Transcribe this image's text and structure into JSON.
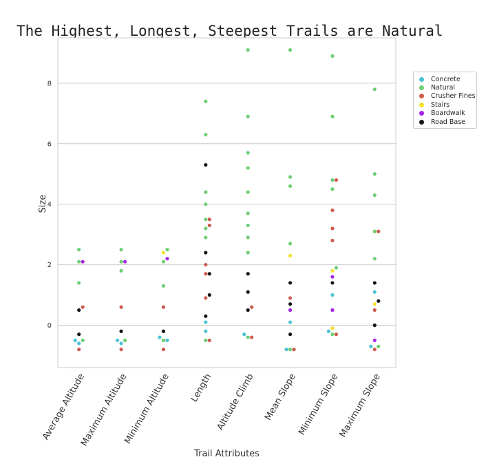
{
  "chart_data": {
    "type": "scatter",
    "subtype": "swarm",
    "title": "The Highest, Longest, Steepest Trails are Natural",
    "xlabel": "Trail Attributes",
    "ylabel": "Size",
    "categories": [
      "Average Altitude",
      "Maximum Altitude",
      "Minimum Altitude",
      "Length",
      "Altitude Climb",
      "Mean Slope",
      "Minimum Slope",
      "Maximum Slope"
    ],
    "yticks": [
      0,
      2,
      4,
      6,
      8
    ],
    "ylim": [
      -1.4,
      9.5
    ],
    "grid": true,
    "legend_position": "right",
    "legend": [
      {
        "name": "Concrete",
        "color": "#4bc3d4"
      },
      {
        "name": "Natural",
        "color": "#6ccf73"
      },
      {
        "name": "Crusher Fines",
        "color": "#cd5b4e"
      },
      {
        "name": "Stairs",
        "color": "#f2e22b"
      },
      {
        "name": "Boardwalk",
        "color": "#a526e8"
      },
      {
        "name": "Road Base",
        "color": "#151515"
      }
    ],
    "series": [
      {
        "name": "Natural",
        "values": [
          {
            "category": "Average Altitude",
            "y": [
              2.1,
              2.5,
              -0.5,
              1.4
            ]
          },
          {
            "category": "Maximum Altitude",
            "y": [
              2.1,
              2.5,
              -0.5,
              1.8
            ]
          },
          {
            "category": "Minimum Altitude",
            "y": [
              2.1,
              2.5,
              -0.5,
              1.3
            ]
          },
          {
            "category": "Length",
            "y": [
              7.4,
              6.3,
              4.4,
              4.0,
              3.5,
              3.2,
              2.9,
              -0.5
            ]
          },
          {
            "category": "Altitude Climb",
            "y": [
              9.1,
              6.9,
              5.7,
              5.2,
              4.4,
              3.7,
              3.3,
              2.9,
              2.4,
              -0.4
            ]
          },
          {
            "category": "Mean Slope",
            "y": [
              9.1,
              4.9,
              4.6,
              2.7,
              -0.8
            ]
          },
          {
            "category": "Minimum Slope",
            "y": [
              8.9,
              6.9,
              4.8,
              4.5,
              1.9,
              -0.3
            ]
          },
          {
            "category": "Maximum Slope",
            "y": [
              7.8,
              5.0,
              4.3,
              3.1,
              2.2,
              -0.7
            ]
          }
        ]
      },
      {
        "name": "Crusher Fines",
        "values": [
          {
            "category": "Average Altitude",
            "y": [
              -0.8,
              0.6
            ]
          },
          {
            "category": "Maximum Altitude",
            "y": [
              -0.8,
              0.6
            ]
          },
          {
            "category": "Minimum Altitude",
            "y": [
              -0.8,
              0.6
            ]
          },
          {
            "category": "Length",
            "y": [
              3.5,
              3.3,
              2.0,
              1.7,
              -0.5,
              0.9
            ]
          },
          {
            "category": "Altitude Climb",
            "y": [
              -0.4,
              0.6
            ]
          },
          {
            "category": "Mean Slope",
            "y": [
              -0.8,
              0.9
            ]
          },
          {
            "category": "Minimum Slope",
            "y": [
              4.8,
              3.8,
              3.2,
              2.8,
              -0.3
            ]
          },
          {
            "category": "Maximum Slope",
            "y": [
              3.1,
              -0.8,
              0.5
            ]
          }
        ]
      },
      {
        "name": "Concrete",
        "values": [
          {
            "category": "Average Altitude",
            "y": [
              -0.5,
              -0.6
            ]
          },
          {
            "category": "Maximum Altitude",
            "y": [
              -0.5,
              -0.6
            ]
          },
          {
            "category": "Minimum Altitude",
            "y": [
              -0.4,
              -0.5
            ]
          },
          {
            "category": "Length",
            "y": [
              -0.2,
              0.1
            ]
          },
          {
            "category": "Altitude Climb",
            "y": [
              -0.3
            ]
          },
          {
            "category": "Mean Slope",
            "y": [
              -0.8,
              0.1
            ]
          },
          {
            "category": "Minimum Slope",
            "y": [
              1.0,
              -0.2
            ]
          },
          {
            "category": "Maximum Slope",
            "y": [
              1.1,
              -0.7
            ]
          }
        ]
      },
      {
        "name": "Stairs",
        "values": [
          {
            "category": "Minimum Altitude",
            "y": [
              2.4
            ]
          },
          {
            "category": "Mean Slope",
            "y": [
              2.3
            ]
          },
          {
            "category": "Minimum Slope",
            "y": [
              1.8,
              -0.1
            ]
          },
          {
            "category": "Maximum Slope",
            "y": [
              0.7
            ]
          }
        ]
      },
      {
        "name": "Boardwalk",
        "values": [
          {
            "category": "Average Altitude",
            "y": [
              2.1
            ]
          },
          {
            "category": "Maximum Altitude",
            "y": [
              2.1
            ]
          },
          {
            "category": "Minimum Altitude",
            "y": [
              2.2
            ]
          },
          {
            "category": "Mean Slope",
            "y": [
              0.5
            ]
          },
          {
            "category": "Minimum Slope",
            "y": [
              1.6,
              0.5
            ]
          },
          {
            "category": "Maximum Slope",
            "y": [
              -0.5
            ]
          }
        ]
      },
      {
        "name": "Road Base",
        "values": [
          {
            "category": "Average Altitude",
            "y": [
              0.5,
              -0.3
            ]
          },
          {
            "category": "Maximum Altitude",
            "y": [
              -0.2
            ]
          },
          {
            "category": "Minimum Altitude",
            "y": [
              -0.2
            ]
          },
          {
            "category": "Length",
            "y": [
              5.3,
              2.4,
              1.7,
              1.0,
              0.3
            ]
          },
          {
            "category": "Altitude Climb",
            "y": [
              1.7,
              1.1,
              0.5
            ]
          },
          {
            "category": "Mean Slope",
            "y": [
              1.4,
              0.7,
              -0.3
            ]
          },
          {
            "category": "Minimum Slope",
            "y": [
              1.4
            ]
          },
          {
            "category": "Maximum Slope",
            "y": [
              1.4,
              0.8,
              0.0
            ]
          }
        ]
      }
    ]
  }
}
